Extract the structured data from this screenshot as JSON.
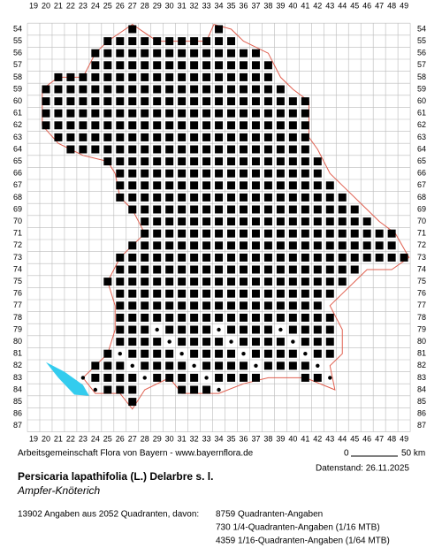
{
  "map": {
    "columns": [
      19,
      20,
      21,
      22,
      23,
      24,
      25,
      26,
      27,
      28,
      29,
      30,
      31,
      32,
      33,
      34,
      35,
      36,
      37,
      38,
      39,
      40,
      41,
      42,
      43,
      44,
      45,
      46,
      47,
      48,
      49
    ],
    "rows": [
      54,
      55,
      56,
      57,
      58,
      59,
      60,
      61,
      62,
      63,
      64,
      65,
      66,
      67,
      68,
      69,
      70,
      71,
      72,
      73,
      74,
      75,
      76,
      77,
      78,
      79,
      80,
      81,
      82,
      83,
      84,
      85,
      86,
      87
    ],
    "credit": "Arbeitsgemeinschaft Flora von Bayern - www.bayernflora.de",
    "scale_start": "0",
    "scale_end": "50 km",
    "date": "Datenstand: 26.11.2025",
    "title": "Persicaria lapathifolia (L.) Delarbre s. l.",
    "subtitle": "Ampfer-Knöterich",
    "stats": [
      "13902 Angaben aus 2052 Quadranten, davon:",
      "8759 Quadranten-Angaben",
      "730 1/4-Quadranten-Angaben (1/16 MTB)",
      "4359 1/16-Quadranten-Angaben (1/64 MTB)"
    ]
  }
}
